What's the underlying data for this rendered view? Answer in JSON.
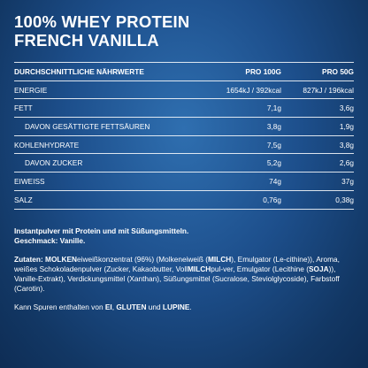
{
  "title": {
    "line1": "100% WHEY PROTEIN",
    "line2": "FRENCH VANILLA"
  },
  "table": {
    "header": {
      "label": "DURCHSCHNITTLICHE NÄHRWERTE",
      "col1": "PRO 100G",
      "col2": "PRO 50G"
    },
    "rows": [
      {
        "label": "ENERGIE",
        "v1": "1654kJ / 392kcal",
        "v2": "827kJ / 196kcal"
      },
      {
        "label": "FETT",
        "v1": "7,1g",
        "v2": "3,6g"
      },
      {
        "label": "DAVON GESÄTTIGTE FETTSÄUREN",
        "v1": "3,8g",
        "v2": "1,9g"
      },
      {
        "label": "KOHLENHYDRATE",
        "v1": "7,5g",
        "v2": "3,8g"
      },
      {
        "label": "DAVON ZUCKER",
        "v1": "5,2g",
        "v2": "2,6g"
      },
      {
        "label": "EIWEISS",
        "v1": "74g",
        "v2": "37g"
      },
      {
        "label": "SALZ",
        "v1": "0,76g",
        "v2": "0,38g"
      }
    ]
  },
  "notes": {
    "description_line1": "Instantpulver mit Protein und mit Süßungsmitteln.",
    "description_line2": "Geschmack: Vanille.",
    "ingredients_label": "Zutaten:",
    "ingredients_parts": [
      "MOLKEN",
      "eiweißkonzentrat (96%) (Molkeneiweiß (",
      "MILCH",
      "), Emulgator (Le-cithine)), Aroma, weißes Schokoladenpulver (Zucker, Kakaobutter, Voll",
      "MILCH",
      "pul-ver, Emulgator (Lecithine (",
      "SOJA",
      ")), Vanille-Extrakt), Verdickungsmittel (Xanthan), Süßungsmittel (Sucralose, Steviolglycoside), Farbstoff (Carotin)."
    ],
    "allergens_parts": [
      "Kann Spuren enthalten von ",
      "EI",
      ", ",
      "GLUTEN",
      " und ",
      "LUPINE",
      "."
    ]
  }
}
